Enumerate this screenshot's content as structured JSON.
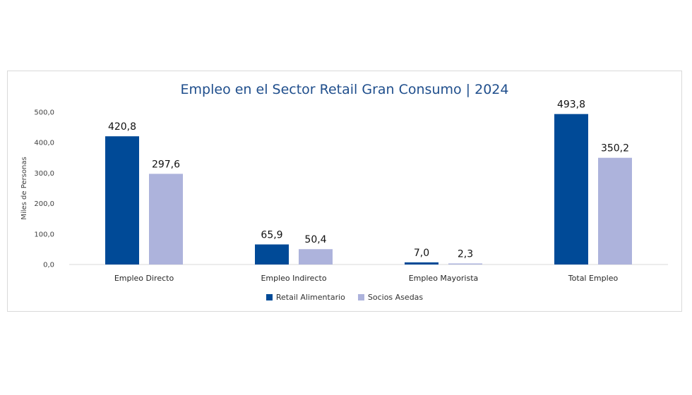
{
  "chart_data": {
    "type": "bar",
    "title": "Empleo en el Sector Retail Gran Consumo | 2024",
    "ylabel": "Miles de Personas",
    "xlabel": "",
    "ylim": [
      0,
      500
    ],
    "yticks": [
      "0,0",
      "100,0",
      "200,0",
      "300,0",
      "400,0",
      "500,0"
    ],
    "categories": [
      "Empleo Directo",
      "Empleo Indirecto",
      "Empleo Mayorista",
      "Total Empleo"
    ],
    "series": [
      {
        "name": "Retail Alimentario",
        "color": "#004a97",
        "values": [
          420.8,
          65.9,
          7.0,
          493.8
        ],
        "labels": [
          "420,8",
          "65,9",
          "7,0",
          "493,8"
        ]
      },
      {
        "name": "Socios Asedas",
        "color": "#adb3dc",
        "values": [
          297.6,
          50.4,
          2.3,
          350.2
        ],
        "labels": [
          "297,6",
          "50,4",
          "2,3",
          "350,2"
        ]
      }
    ],
    "grid": false,
    "legend_position": "bottom"
  }
}
